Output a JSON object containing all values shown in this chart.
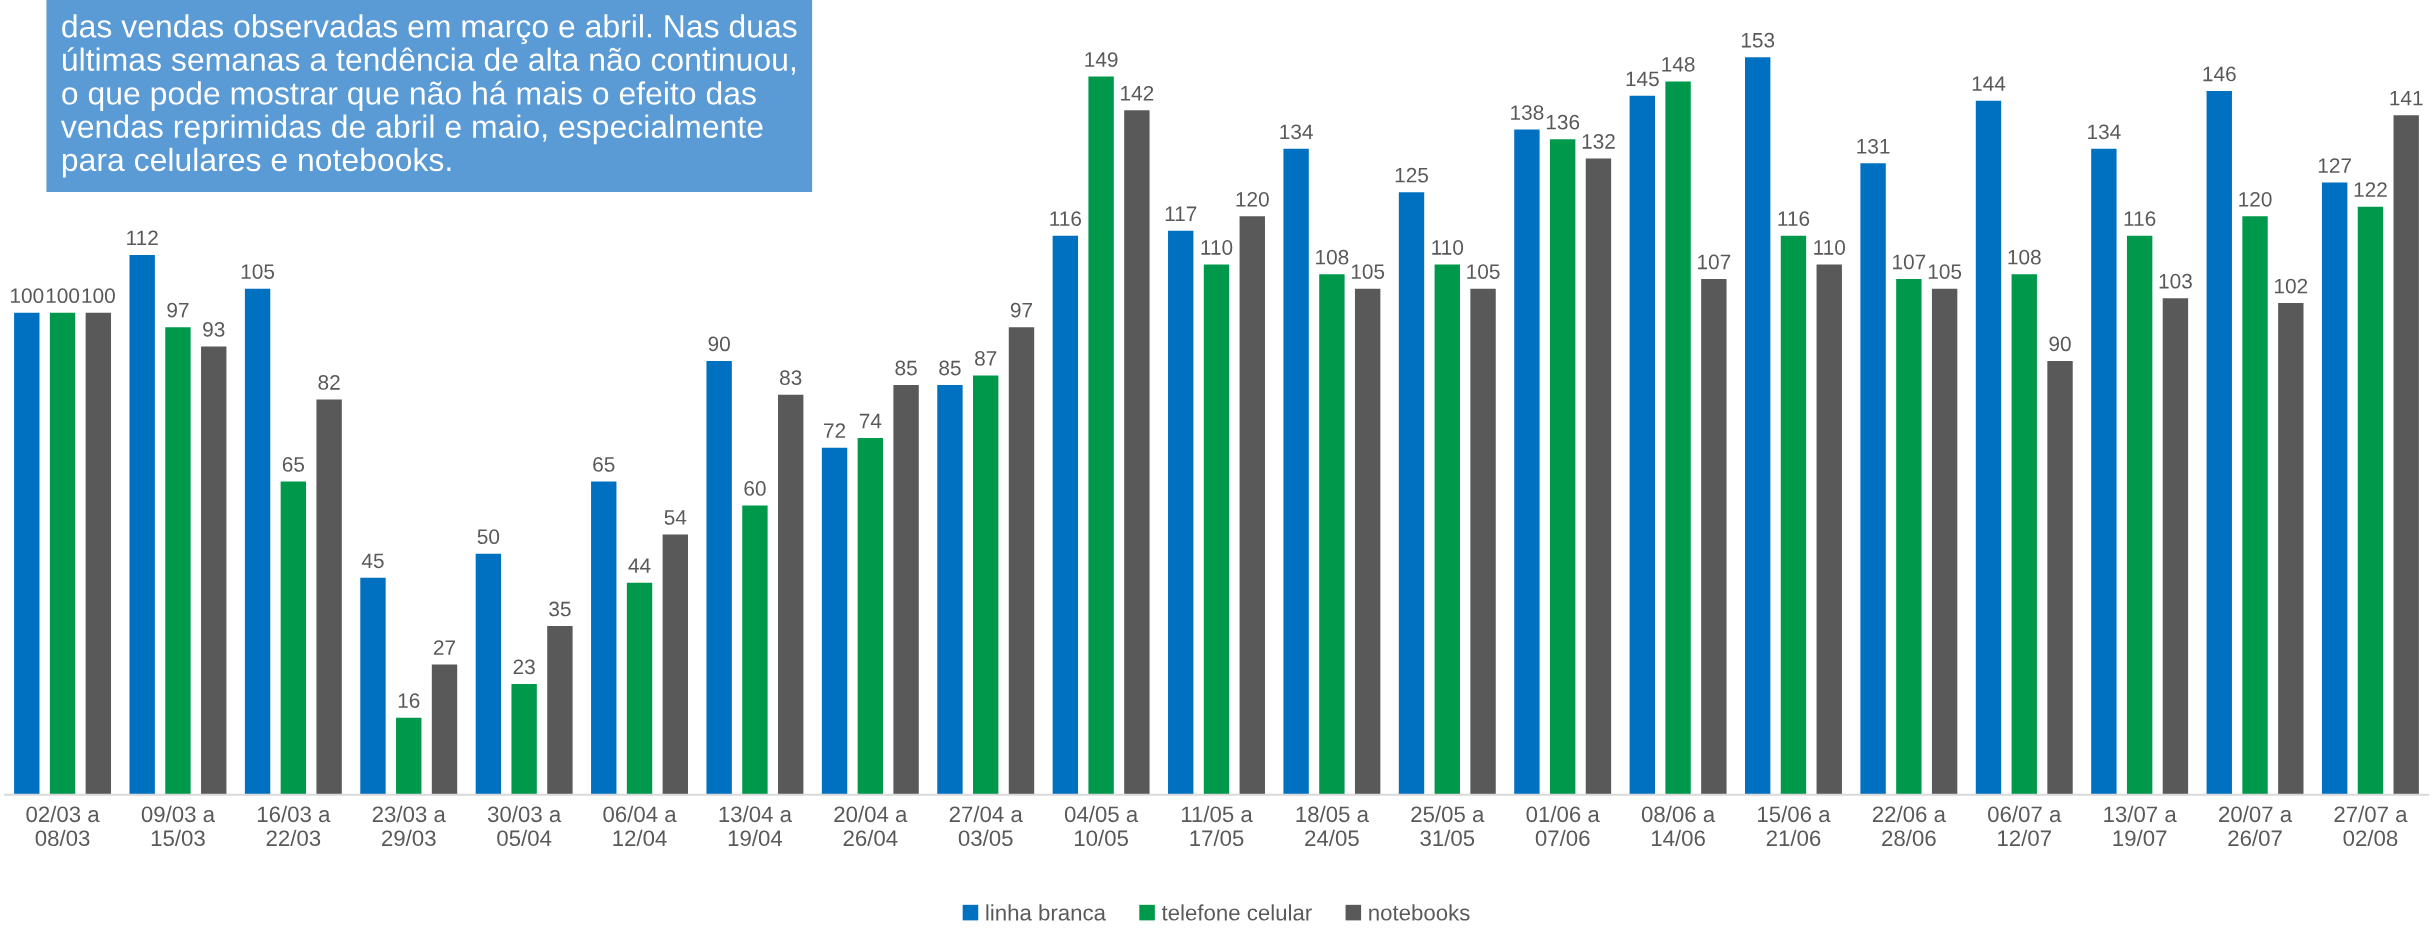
{
  "chart_data": {
    "type": "bar",
    "annotations": [
      "das vendas observadas em março e abril. Nas duas\núltimas semanas a tendência de alta não continuou,\no que pode mostrar que não há mais o efeito das\nvendas reprimidas de abril e maio, especialmente\npara celulares e notebooks."
    ],
    "categories": [
      "02/03 a\n08/03",
      "09/03 a\n15/03",
      "16/03 a\n22/03",
      "23/03 a\n29/03",
      "30/03 a\n05/04",
      "06/04 a\n12/04",
      "13/04 a\n19/04",
      "20/04 a\n26/04",
      "27/04 a\n03/05",
      "04/05 a\n10/05",
      "11/05 a\n17/05",
      "18/05 a\n24/05",
      "25/05 a\n31/05",
      "01/06 a\n07/06",
      "08/06 a\n14/06",
      "15/06 a\n21/06",
      "22/06 a\n28/06",
      "06/07 a\n12/07",
      "13/07 a\n19/07",
      "20/07 a\n26/07",
      "27/07 a\n02/08"
    ],
    "series": [
      {
        "name": "linha branca",
        "color": "#0070c0",
        "values": [
          100,
          112,
          105,
          45,
          50,
          65,
          90,
          72,
          85,
          116,
          117,
          134,
          125,
          138,
          145,
          153,
          131,
          144,
          134,
          146,
          127
        ]
      },
      {
        "name": "telefone celular",
        "color": "#00994c",
        "values": [
          100,
          97,
          65,
          16,
          23,
          44,
          60,
          74,
          87,
          149,
          110,
          108,
          110,
          136,
          148,
          116,
          107,
          108,
          116,
          120,
          122
        ]
      },
      {
        "name": "notebooks",
        "color": "#595959",
        "values": [
          100,
          93,
          82,
          27,
          35,
          54,
          83,
          85,
          97,
          142,
          120,
          105,
          105,
          132,
          107,
          110,
          105,
          90,
          103,
          102,
          141
        ]
      }
    ],
    "data_labels": true,
    "legend": "bottom",
    "tick_labels": "x"
  }
}
